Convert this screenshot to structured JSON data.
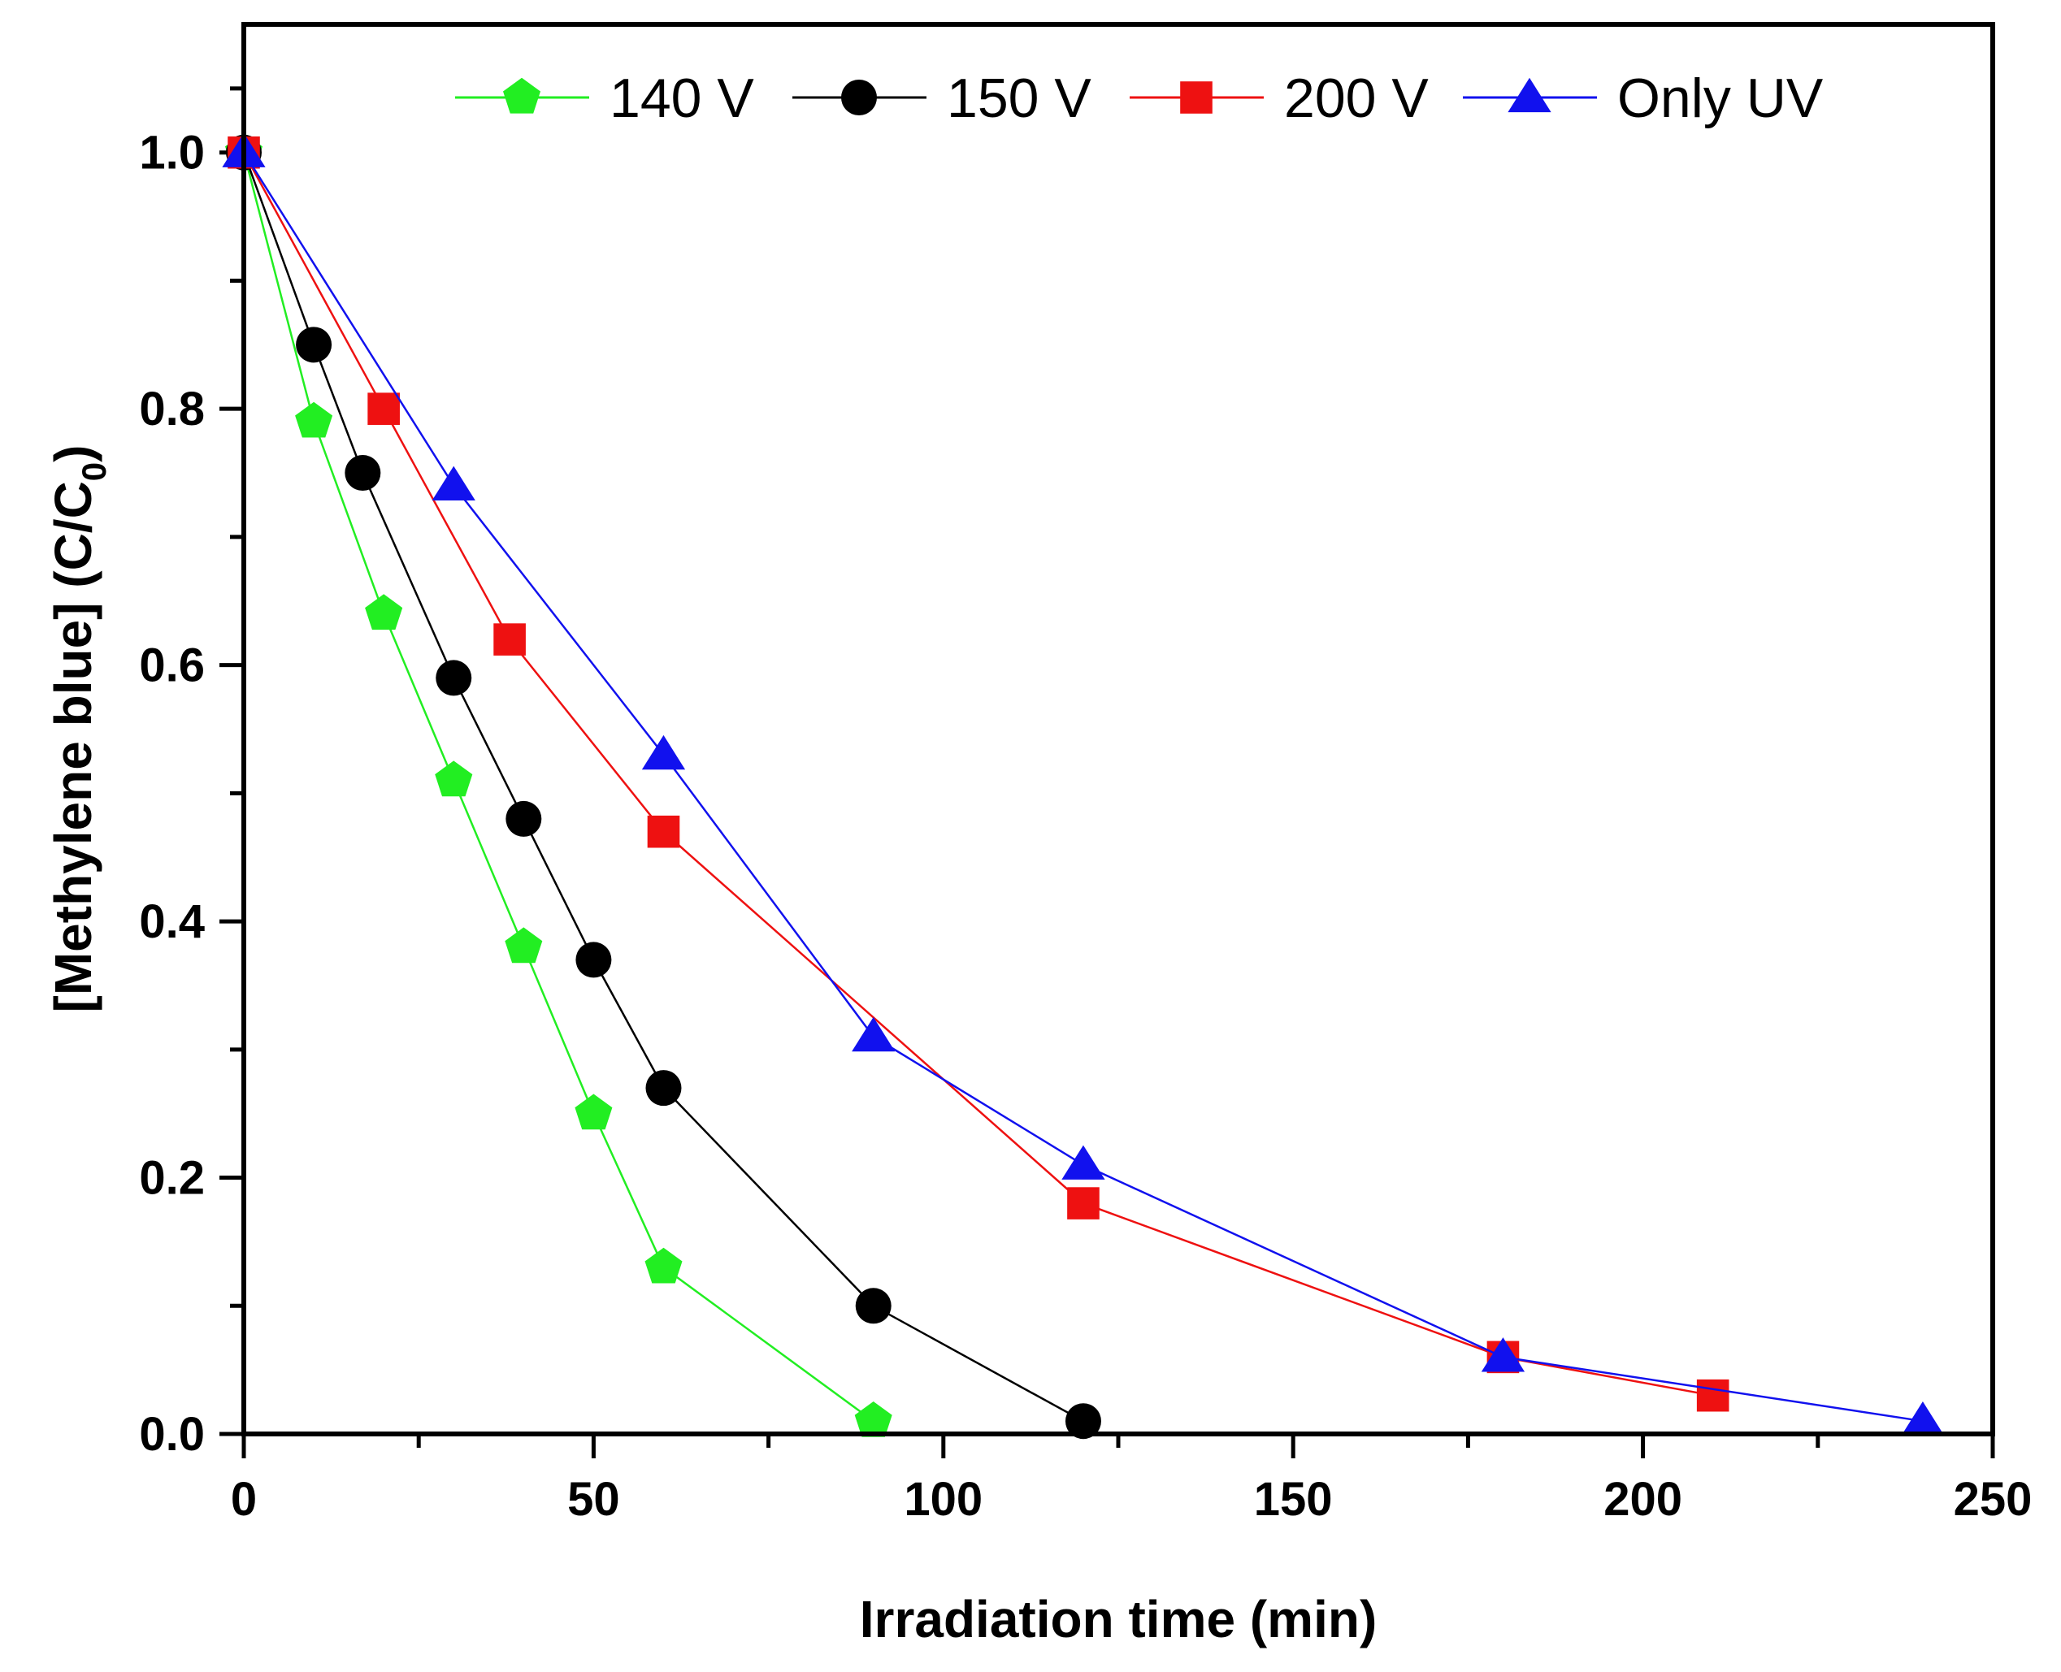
{
  "chart_data": {
    "type": "line",
    "title": "",
    "xlabel": "Irradiation time (min)",
    "ylabel": {
      "main": "[Methylene blue] (C/C",
      "subscript": "0",
      "close": ")"
    },
    "xlim": [
      0,
      250
    ],
    "ylim": [
      0,
      1.1
    ],
    "x_ticks": [
      0,
      50,
      100,
      150,
      200,
      250
    ],
    "x_tick_labels": [
      "0",
      "50",
      "100",
      "150",
      "200",
      "250"
    ],
    "y_ticks": [
      0,
      0.2,
      0.4,
      0.6,
      0.8,
      1.0
    ],
    "y_tick_labels": [
      "0.0",
      "0.2",
      "0.4",
      "0.6",
      "0.8",
      "1.0"
    ],
    "grid": false,
    "legend_position": "top",
    "series": [
      {
        "name": "140 V",
        "color": "#22ee22",
        "marker": "pentagon",
        "x": [
          0,
          10,
          20,
          30,
          40,
          50,
          60,
          90
        ],
        "y": [
          1.0,
          0.79,
          0.64,
          0.51,
          0.38,
          0.25,
          0.13,
          0.01
        ]
      },
      {
        "name": "150 V",
        "color": "#000000",
        "marker": "circle",
        "x": [
          0,
          10,
          17,
          30,
          40,
          50,
          60,
          90,
          120
        ],
        "y": [
          1.0,
          0.85,
          0.75,
          0.59,
          0.48,
          0.37,
          0.27,
          0.1,
          0.01
        ]
      },
      {
        "name": "200 V",
        "color": "#ee1111",
        "marker": "square",
        "x": [
          0,
          20,
          38,
          60,
          120,
          180,
          210
        ],
        "y": [
          1.0,
          0.8,
          0.62,
          0.47,
          0.18,
          0.06,
          0.03
        ]
      },
      {
        "name": "Only UV",
        "color": "#1111ee",
        "marker": "triangle",
        "x": [
          0,
          30,
          60,
          90,
          120,
          180,
          240
        ],
        "y": [
          1.0,
          0.74,
          0.53,
          0.31,
          0.21,
          0.06,
          0.01
        ]
      }
    ]
  }
}
